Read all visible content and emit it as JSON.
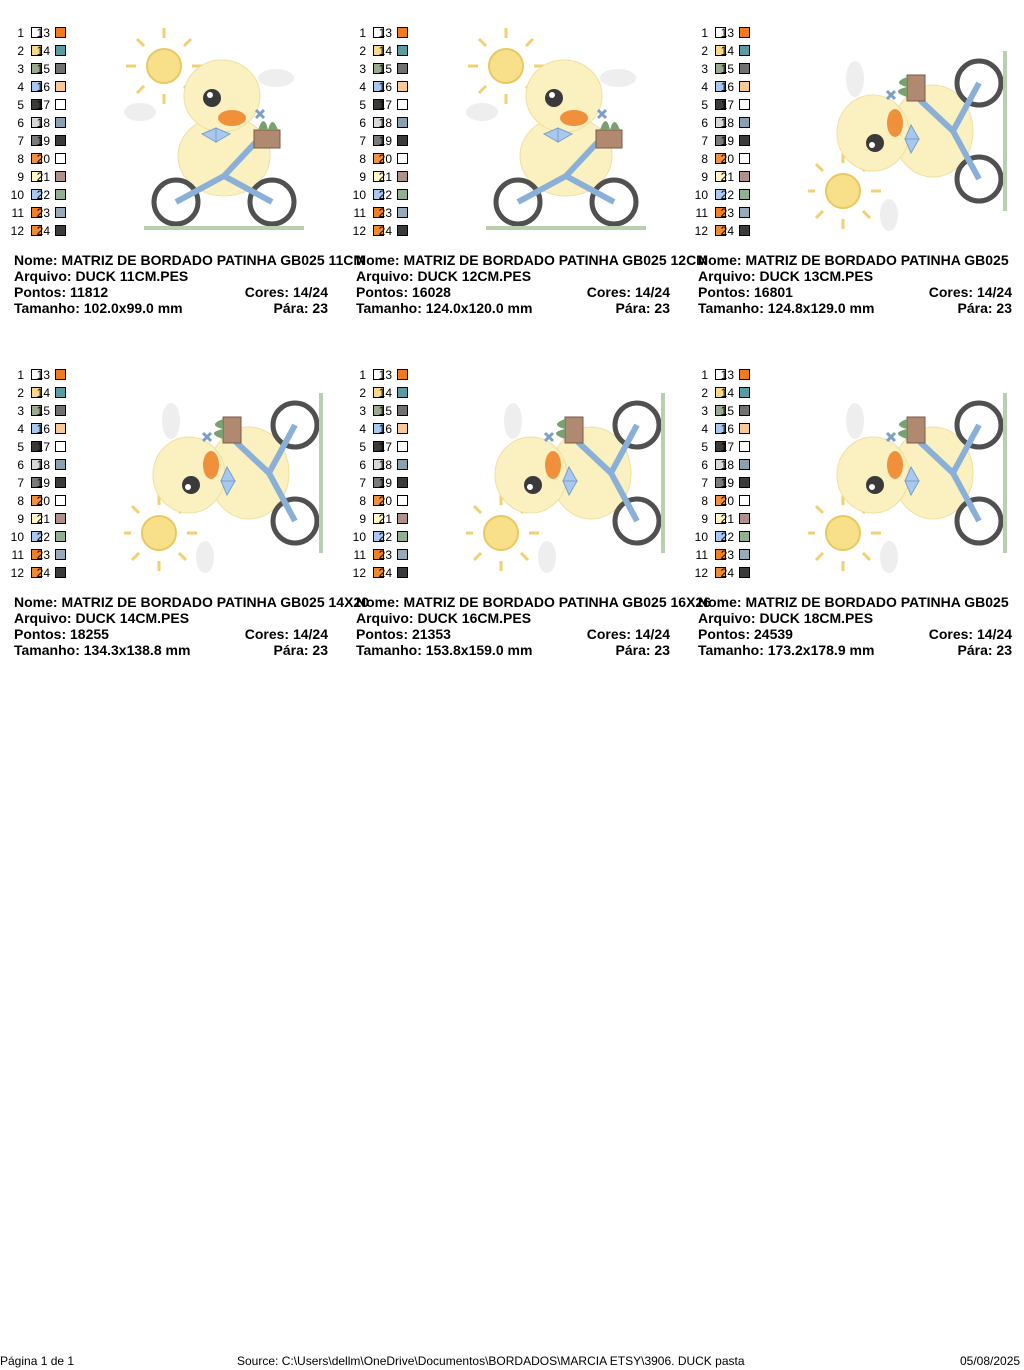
{
  "palette": {
    "left": [
      {
        "num": "1",
        "color": "#ffffff"
      },
      {
        "num": "2",
        "color": "#f8d88a"
      },
      {
        "num": "3",
        "color": "#9aaa8e"
      },
      {
        "num": "4",
        "color": "#a8c8f0"
      },
      {
        "num": "5",
        "color": "#3c3a36"
      },
      {
        "num": "6",
        "color": "#d8d8d8"
      },
      {
        "num": "7",
        "color": "#7a7a7a"
      },
      {
        "num": "8",
        "color": "#f09040"
      },
      {
        "num": "9",
        "color": "#fff7c8"
      },
      {
        "num": "10",
        "color": "#a8c8f0"
      },
      {
        "num": "11",
        "color": "#f08020"
      },
      {
        "num": "12",
        "color": "#f08a30"
      }
    ],
    "right": [
      {
        "num": "13",
        "color": "#f07a20"
      },
      {
        "num": "14",
        "color": "#5a9aa0"
      },
      {
        "num": "15",
        "color": "#707070"
      },
      {
        "num": "16",
        "color": "#f8c898"
      },
      {
        "num": "17",
        "color": "#ffffff"
      },
      {
        "num": "18",
        "color": "#8aa0b0"
      },
      {
        "num": "19",
        "color": "#3a3a3a"
      },
      {
        "num": "20",
        "color": "#ffffff"
      },
      {
        "num": "21",
        "color": "#b0908a"
      },
      {
        "num": "22",
        "color": "#90b090"
      },
      {
        "num": "23",
        "color": "#98aab8"
      },
      {
        "num": "24",
        "color": "#3a3a3a"
      }
    ]
  },
  "labels": {
    "name": "Nome:",
    "file": "Arquivo:",
    "stitches": "Pontos:",
    "colors": "Cores:",
    "size": "Tamanho:",
    "stops": "Pára:"
  },
  "cards": [
    {
      "name": "MATRIZ DE BORDADO PATINHA GB025 11CM",
      "file": "DUCK 11CM.PES",
      "stitches": "11812",
      "colors": "14/24",
      "size": "102.0x99.0 mm",
      "stops": "23",
      "orientation": "upright"
    },
    {
      "name": "MATRIZ DE BORDADO PATINHA GB025 12CM",
      "file": "DUCK 12CM.PES",
      "stitches": "16028",
      "colors": "14/24",
      "size": "124.0x120.0 mm",
      "stops": "23",
      "orientation": "upright"
    },
    {
      "name": "MATRIZ DE BORDADO PATINHA GB025",
      "file": "DUCK 13CM.PES",
      "stitches": "16801",
      "colors": "14/24",
      "size": "124.8x129.0 mm",
      "stops": "23",
      "orientation": "rotated"
    },
    {
      "name": "MATRIZ DE BORDADO PATINHA GB025 14X20",
      "file": "DUCK 14CM.PES",
      "stitches": "18255",
      "colors": "14/24",
      "size": "134.3x138.8 mm",
      "stops": "23",
      "orientation": "rotated"
    },
    {
      "name": "MATRIZ DE BORDADO PATINHA GB025 16X26",
      "file": "DUCK 16CM.PES",
      "stitches": "21353",
      "colors": "14/24",
      "size": "153.8x159.0 mm",
      "stops": "23",
      "orientation": "rotated"
    },
    {
      "name": "MATRIZ DE BORDADO PATINHA GB025",
      "file": "DUCK 18CM.PES",
      "stitches": "24539",
      "colors": "14/24",
      "size": "173.2x178.9 mm",
      "stops": "23",
      "orientation": "rotated"
    }
  ],
  "footer": {
    "page": "Página 1 de 1",
    "source": "Source: C:\\Users\\dellm\\OneDrive\\Documentos\\BORDADOS\\MARCIA ETSY\\3906. DUCK pasta",
    "date": "05/08/2025"
  },
  "icons": [
    "duck-embroidery-image"
  ]
}
